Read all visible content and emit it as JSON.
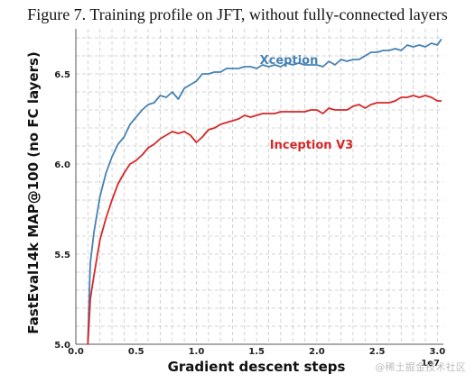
{
  "caption": "Figure 7. Training profile on JFT, without fully-connected layers",
  "watermark": "@稀土掘金技术社区",
  "chart_data": {
    "type": "line",
    "title": "",
    "xlabel": "Gradient descent steps",
    "ylabel": "FastEval14k MAP@100 (no FC layers)",
    "x_offset_label": "1e7",
    "xlim": [
      0.0,
      3.05
    ],
    "ylim": [
      5.0,
      6.75
    ],
    "x_ticks": [
      0.0,
      0.5,
      1.0,
      1.5,
      2.0,
      2.5,
      3.0
    ],
    "x_tick_labels": [
      "0.0",
      "0.5",
      "1.0",
      "1.5",
      "2.0",
      "2.5",
      "3.0"
    ],
    "y_ticks": [
      5.0,
      5.5,
      6.0,
      6.5
    ],
    "y_tick_labels": [
      "5.0",
      "5.5",
      "6.0",
      "6.5"
    ],
    "grid": true,
    "series": [
      {
        "name": "Xception",
        "color": "#4682b4",
        "x": [
          0.1,
          0.12,
          0.15,
          0.2,
          0.25,
          0.3,
          0.35,
          0.4,
          0.45,
          0.5,
          0.55,
          0.6,
          0.65,
          0.7,
          0.75,
          0.8,
          0.85,
          0.9,
          0.95,
          1.0,
          1.05,
          1.1,
          1.15,
          1.2,
          1.25,
          1.3,
          1.35,
          1.4,
          1.45,
          1.5,
          1.55,
          1.6,
          1.65,
          1.7,
          1.75,
          1.8,
          1.85,
          1.9,
          1.95,
          2.0,
          2.05,
          2.1,
          2.15,
          2.2,
          2.25,
          2.3,
          2.35,
          2.4,
          2.45,
          2.5,
          2.55,
          2.6,
          2.65,
          2.7,
          2.75,
          2.8,
          2.85,
          2.9,
          2.95,
          3.0,
          3.03
        ],
        "y": [
          5.02,
          5.45,
          5.62,
          5.82,
          5.95,
          6.04,
          6.11,
          6.15,
          6.22,
          6.26,
          6.3,
          6.33,
          6.34,
          6.38,
          6.37,
          6.4,
          6.36,
          6.42,
          6.44,
          6.46,
          6.5,
          6.5,
          6.51,
          6.51,
          6.53,
          6.53,
          6.53,
          6.54,
          6.54,
          6.53,
          6.55,
          6.54,
          6.55,
          6.54,
          6.56,
          6.55,
          6.56,
          6.55,
          6.55,
          6.55,
          6.54,
          6.57,
          6.55,
          6.58,
          6.57,
          6.58,
          6.58,
          6.6,
          6.62,
          6.62,
          6.63,
          6.63,
          6.64,
          6.63,
          6.66,
          6.65,
          6.66,
          6.65,
          6.67,
          6.66,
          6.69
        ]
      },
      {
        "name": "Inception V3",
        "color": "#d62728",
        "x": [
          0.1,
          0.12,
          0.15,
          0.2,
          0.25,
          0.3,
          0.35,
          0.4,
          0.45,
          0.5,
          0.55,
          0.6,
          0.65,
          0.7,
          0.75,
          0.8,
          0.85,
          0.9,
          0.95,
          1.0,
          1.05,
          1.1,
          1.15,
          1.2,
          1.25,
          1.3,
          1.35,
          1.4,
          1.45,
          1.5,
          1.55,
          1.6,
          1.65,
          1.7,
          1.75,
          1.8,
          1.85,
          1.9,
          1.95,
          2.0,
          2.05,
          2.1,
          2.15,
          2.2,
          2.25,
          2.3,
          2.35,
          2.4,
          2.45,
          2.5,
          2.55,
          2.6,
          2.65,
          2.7,
          2.75,
          2.8,
          2.85,
          2.9,
          2.95,
          3.0,
          3.03
        ],
        "y": [
          5.0,
          5.25,
          5.38,
          5.58,
          5.7,
          5.8,
          5.89,
          5.95,
          6.0,
          6.02,
          6.05,
          6.09,
          6.11,
          6.14,
          6.16,
          6.18,
          6.17,
          6.18,
          6.16,
          6.12,
          6.15,
          6.19,
          6.2,
          6.22,
          6.23,
          6.24,
          6.25,
          6.27,
          6.26,
          6.27,
          6.28,
          6.28,
          6.28,
          6.29,
          6.29,
          6.29,
          6.29,
          6.29,
          6.3,
          6.3,
          6.28,
          6.31,
          6.3,
          6.3,
          6.3,
          6.32,
          6.33,
          6.31,
          6.33,
          6.34,
          6.34,
          6.34,
          6.35,
          6.37,
          6.37,
          6.38,
          6.37,
          6.38,
          6.37,
          6.35,
          6.35
        ]
      }
    ]
  }
}
